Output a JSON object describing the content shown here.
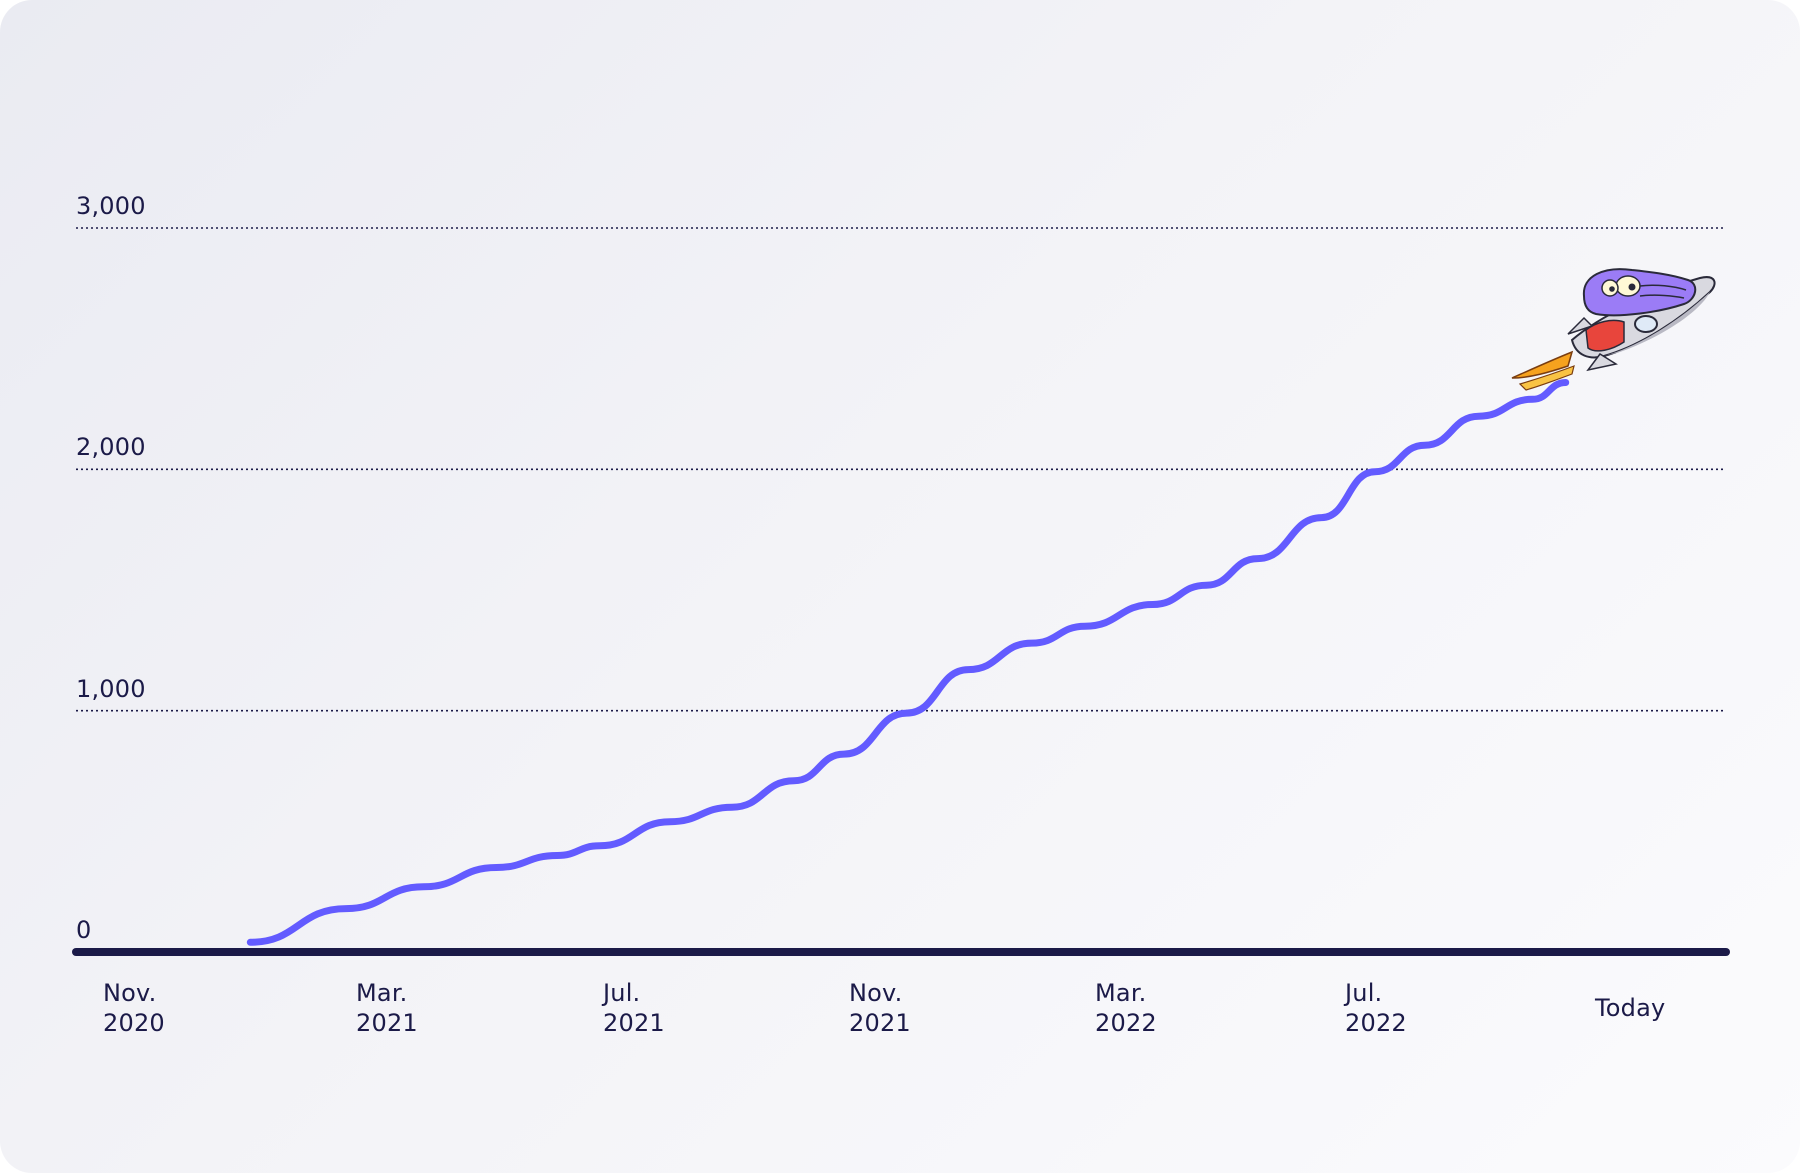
{
  "chart_data": {
    "type": "line",
    "title": "",
    "xlabel": "",
    "ylabel": "",
    "ylim": [
      0,
      3000
    ],
    "grid": true,
    "y_ticks": [
      {
        "value": 0,
        "label": "0"
      },
      {
        "value": 1000,
        "label": "1,000"
      },
      {
        "value": 2000,
        "label": "2,000"
      },
      {
        "value": 3000,
        "label": "3,000"
      }
    ],
    "x_ticks": [
      {
        "date": "2020-11-01",
        "line1": "Nov.",
        "line2": "2020"
      },
      {
        "date": "2021-03-01",
        "line1": "Mar.",
        "line2": "2021"
      },
      {
        "date": "2021-07-01",
        "line1": "Jul.",
        "line2": "2021"
      },
      {
        "date": "2021-11-01",
        "line1": "Nov.",
        "line2": "2021"
      },
      {
        "date": "2022-03-01",
        "line1": "Mar.",
        "line2": "2022"
      },
      {
        "date": "2022-07-01",
        "line1": "Jul.",
        "line2": "2022"
      },
      {
        "date": "2022-11-01",
        "line1": "Today",
        "line2": ""
      }
    ],
    "series": [
      {
        "color": "#635bff",
        "points": [
          {
            "x": "2020-12-25",
            "y": 40
          },
          {
            "x": "2021-02-10",
            "y": 180
          },
          {
            "x": "2021-03-20",
            "y": 270
          },
          {
            "x": "2021-04-25",
            "y": 350
          },
          {
            "x": "2021-05-25",
            "y": 400
          },
          {
            "x": "2021-06-15",
            "y": 440
          },
          {
            "x": "2021-07-20",
            "y": 540
          },
          {
            "x": "2021-08-20",
            "y": 600
          },
          {
            "x": "2021-09-20",
            "y": 710
          },
          {
            "x": "2021-10-15",
            "y": 820
          },
          {
            "x": "2021-11-15",
            "y": 990
          },
          {
            "x": "2021-12-15",
            "y": 1170
          },
          {
            "x": "2022-01-15",
            "y": 1280
          },
          {
            "x": "2022-02-10",
            "y": 1350
          },
          {
            "x": "2022-03-15",
            "y": 1440
          },
          {
            "x": "2022-04-10",
            "y": 1520
          },
          {
            "x": "2022-05-05",
            "y": 1630
          },
          {
            "x": "2022-06-05",
            "y": 1800
          },
          {
            "x": "2022-07-01",
            "y": 1990
          },
          {
            "x": "2022-07-25",
            "y": 2100
          },
          {
            "x": "2022-08-20",
            "y": 2220
          },
          {
            "x": "2022-09-15",
            "y": 2290
          },
          {
            "x": "2022-10-01",
            "y": 2360
          }
        ]
      }
    ]
  },
  "mascot": {
    "icon": "rocket-mascot-icon",
    "colors": {
      "head": "#9b7cf6",
      "body": "#d9d9e0",
      "scarf": "#e8453c",
      "flame": "#f6a21e"
    }
  },
  "colors": {
    "axis": "#1b1a48",
    "grid": "#1b1a48",
    "line": "#635bff",
    "text": "#1b1a48"
  }
}
